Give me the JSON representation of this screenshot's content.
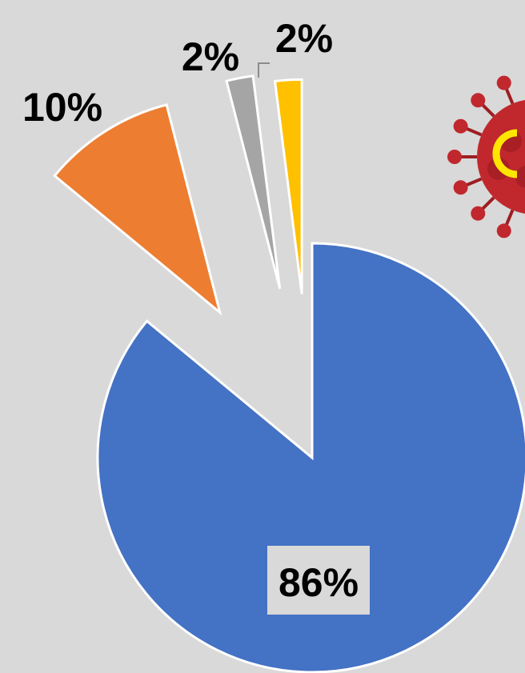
{
  "chart_data": {
    "type": "pie",
    "exploded": true,
    "start_angle_deg": 0,
    "direction": "clockwise",
    "slices": [
      {
        "value": 86,
        "label": "86%",
        "color": "#4472c4"
      },
      {
        "value": 10,
        "label": "10%",
        "color": "#ed7d31"
      },
      {
        "value": 2,
        "label": "2%",
        "color": "#a5a5a5"
      },
      {
        "value": 2,
        "label": "2%",
        "color": "#ffc000"
      }
    ]
  },
  "decoration": {
    "icon": "virus-icon",
    "color": "#c0282d"
  }
}
